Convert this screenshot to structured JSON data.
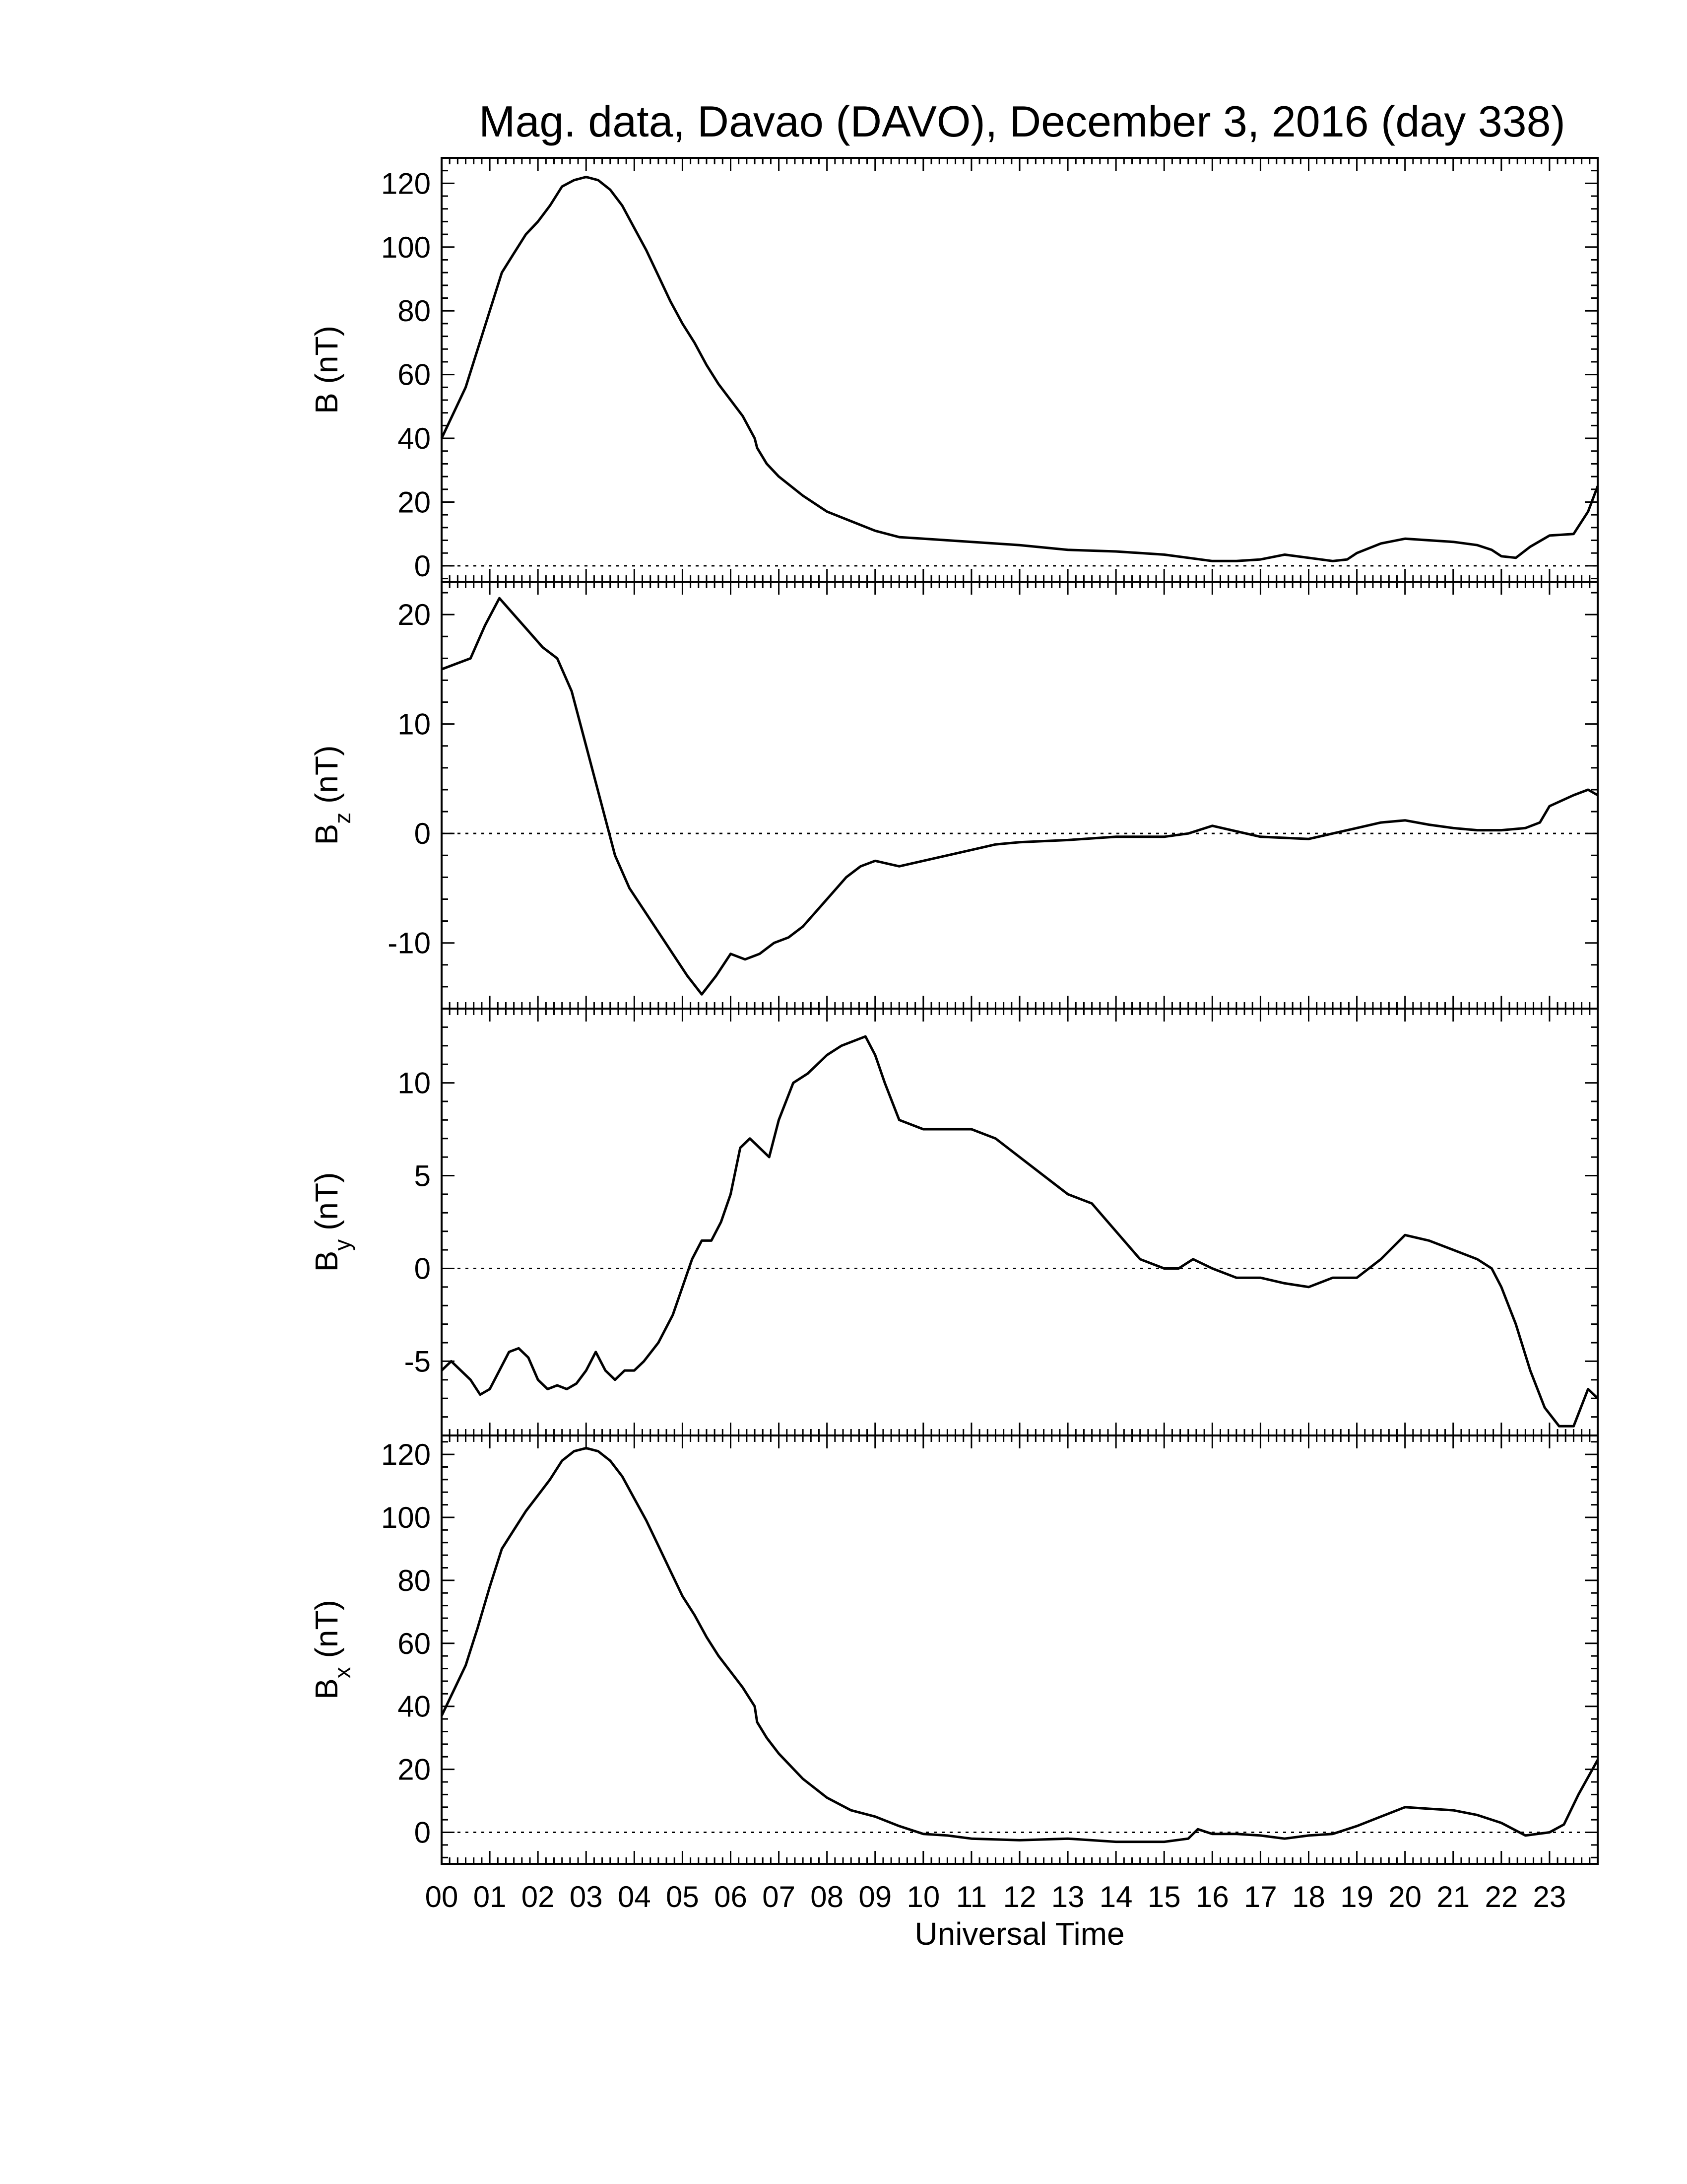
{
  "figure": {
    "title": "Mag. data, Davao (DAVO), December 3, 2016 (day 338)",
    "xlabel": "Universal Time"
  },
  "chart_data": [
    {
      "type": "line",
      "id": "B",
      "ylabel_main": "B",
      "ylabel_sub": "",
      "ylabel_unit": "(nT)",
      "xlim": [
        0,
        24
      ],
      "ylim": [
        -5,
        128
      ],
      "yticks": [
        0,
        20,
        40,
        60,
        80,
        100,
        120
      ],
      "zero_line": true,
      "x": [
        0,
        0.25,
        0.5,
        0.75,
        1.0,
        1.25,
        1.5,
        1.75,
        2.0,
        2.25,
        2.5,
        2.75,
        3.0,
        3.25,
        3.5,
        3.75,
        4.0,
        4.25,
        4.5,
        4.75,
        5.0,
        5.25,
        5.5,
        5.75,
        6.0,
        6.25,
        6.5,
        6.55,
        6.75,
        7.0,
        7.5,
        8.0,
        8.5,
        9.0,
        9.5,
        10.0,
        10.5,
        11.0,
        12.0,
        13.0,
        14.0,
        15.0,
        15.5,
        16.0,
        16.5,
        17.0,
        17.5,
        18.0,
        18.5,
        18.8,
        19.0,
        19.5,
        20.0,
        20.5,
        21.0,
        21.5,
        21.8,
        22.0,
        22.3,
        22.6,
        23.0,
        23.5,
        23.8,
        24.0
      ],
      "values": [
        40,
        48,
        56,
        68,
        80,
        92,
        98,
        104,
        108,
        113,
        119,
        121,
        122,
        121,
        118,
        113,
        106,
        99,
        91,
        83,
        76,
        70,
        63,
        57,
        52,
        47,
        40,
        37,
        32,
        28,
        22,
        17,
        14,
        11,
        9,
        8.5,
        8,
        7.5,
        6.5,
        5,
        4.5,
        3.5,
        2.5,
        1.5,
        1.5,
        2,
        3.5,
        2.5,
        1.5,
        2,
        4,
        7,
        8.5,
        8,
        7.5,
        6.5,
        5,
        3,
        2.5,
        6,
        9.5,
        10,
        17,
        25
      ]
    },
    {
      "type": "line",
      "id": "Bz",
      "ylabel_main": "B",
      "ylabel_sub": "z",
      "ylabel_unit": "(nT)",
      "xlim": [
        0,
        24
      ],
      "ylim": [
        -16,
        23
      ],
      "yticks": [
        -10,
        0,
        10,
        20
      ],
      "zero_line": true,
      "x": [
        0,
        0.3,
        0.6,
        0.9,
        1.2,
        1.5,
        1.8,
        2.1,
        2.4,
        2.7,
        3.0,
        3.3,
        3.6,
        3.9,
        4.2,
        4.5,
        4.8,
        5.1,
        5.4,
        5.7,
        6.0,
        6.3,
        6.6,
        6.9,
        7.2,
        7.5,
        7.8,
        8.1,
        8.4,
        8.7,
        9.0,
        9.5,
        10.0,
        10.5,
        11.0,
        11.5,
        12.0,
        13.0,
        14.0,
        15.0,
        15.5,
        16.0,
        16.5,
        17.0,
        18.0,
        18.5,
        19.0,
        19.5,
        20.0,
        20.5,
        21.0,
        21.5,
        22.0,
        22.5,
        22.8,
        23.0,
        23.5,
        23.8,
        24.0
      ],
      "values": [
        15,
        15.5,
        16,
        19,
        21.5,
        20,
        18.5,
        17,
        16,
        13,
        8,
        3,
        -2,
        -5,
        -7,
        -9,
        -11,
        -13,
        -14.7,
        -13,
        -11,
        -11.5,
        -11,
        -10,
        -9.5,
        -8.5,
        -7,
        -5.5,
        -4,
        -3,
        -2.5,
        -3,
        -2.5,
        -2,
        -1.5,
        -1,
        -0.8,
        -0.6,
        -0.3,
        -0.3,
        0,
        0.7,
        0.2,
        -0.3,
        -0.5,
        0,
        0.5,
        1,
        1.2,
        0.8,
        0.5,
        0.3,
        0.3,
        0.5,
        1,
        2.5,
        3.5,
        4,
        3.5
      ]
    },
    {
      "type": "line",
      "id": "By",
      "ylabel_main": "B",
      "ylabel_sub": "y",
      "ylabel_unit": "(nT)",
      "xlim": [
        0,
        24
      ],
      "ylim": [
        -9,
        14
      ],
      "yticks": [
        -5,
        0,
        5,
        10
      ],
      "zero_line": true,
      "x": [
        0,
        0.2,
        0.4,
        0.6,
        0.8,
        1.0,
        1.2,
        1.4,
        1.6,
        1.8,
        2.0,
        2.2,
        2.4,
        2.6,
        2.8,
        3.0,
        3.2,
        3.4,
        3.6,
        3.8,
        4.0,
        4.2,
        4.5,
        4.8,
        5.0,
        5.2,
        5.4,
        5.6,
        5.8,
        6.0,
        6.2,
        6.4,
        6.6,
        6.8,
        7.0,
        7.3,
        7.6,
        8.0,
        8.3,
        8.6,
        8.8,
        9.0,
        9.2,
        9.5,
        10.0,
        10.5,
        11.0,
        11.5,
        12.0,
        12.5,
        13.0,
        13.5,
        14.0,
        14.5,
        15.0,
        15.3,
        15.6,
        16.0,
        16.5,
        17.0,
        17.5,
        18.0,
        18.5,
        19.0,
        19.5,
        20.0,
        20.5,
        21.0,
        21.5,
        21.8,
        22.0,
        22.3,
        22.6,
        22.9,
        23.2,
        23.5,
        23.8,
        24.0
      ],
      "values": [
        -5.5,
        -5,
        -5.5,
        -6,
        -6.8,
        -6.5,
        -5.5,
        -4.5,
        -4.3,
        -4.8,
        -6,
        -6.5,
        -6.3,
        -6.5,
        -6.2,
        -5.5,
        -4.5,
        -5.5,
        -6,
        -5.5,
        -5.5,
        -5,
        -4,
        -2.5,
        -1,
        0.5,
        1.5,
        1.5,
        2.5,
        4,
        6.5,
        7,
        6.5,
        6,
        8,
        10,
        10.5,
        11.5,
        12,
        12.3,
        12.5,
        11.5,
        10,
        8,
        7.5,
        7.5,
        7.5,
        7,
        6,
        5,
        4,
        3.5,
        2,
        0.5,
        0,
        0,
        0.5,
        0,
        -0.5,
        -0.5,
        -0.8,
        -1,
        -0.5,
        -0.5,
        0.5,
        1.8,
        1.5,
        1,
        0.5,
        0,
        -1,
        -3,
        -5.5,
        -7.5,
        -8.5,
        -8.5,
        -6.5,
        -7
      ]
    },
    {
      "type": "line",
      "id": "Bx",
      "ylabel_main": "B",
      "ylabel_sub": "x",
      "ylabel_unit": "(nT)",
      "xlim": [
        0,
        24
      ],
      "ylim": [
        -10,
        126
      ],
      "yticks": [
        0,
        20,
        40,
        60,
        80,
        100,
        120
      ],
      "zero_line": true,
      "x": [
        0,
        0.25,
        0.5,
        0.75,
        1.0,
        1.25,
        1.5,
        1.75,
        2.0,
        2.25,
        2.5,
        2.75,
        3.0,
        3.25,
        3.5,
        3.75,
        4.0,
        4.25,
        4.5,
        4.75,
        5.0,
        5.25,
        5.5,
        5.75,
        6.0,
        6.25,
        6.5,
        6.55,
        6.75,
        7.0,
        7.5,
        8.0,
        8.5,
        9.0,
        9.5,
        10.0,
        10.5,
        11.0,
        12.0,
        13.0,
        14.0,
        15.0,
        15.5,
        15.7,
        16.0,
        16.5,
        17.0,
        17.5,
        18.0,
        18.5,
        19.0,
        19.5,
        20.0,
        20.5,
        21.0,
        21.5,
        22.0,
        22.5,
        23.0,
        23.3,
        23.6,
        24.0
      ],
      "values": [
        37,
        45,
        53,
        65,
        78,
        90,
        96,
        102,
        107,
        112,
        118,
        121,
        122,
        121,
        118,
        113,
        106,
        99,
        91,
        83,
        75,
        69,
        62,
        56,
        51,
        46,
        40,
        35,
        30,
        25,
        17,
        11,
        7,
        5,
        2,
        -0.5,
        -1,
        -2,
        -2.5,
        -2,
        -3,
        -3,
        -2,
        1,
        -0.5,
        -0.5,
        -1,
        -2,
        -1,
        -0.5,
        2,
        5,
        8,
        7.5,
        7,
        5.5,
        3,
        -1,
        0,
        2.5,
        12,
        23
      ]
    }
  ],
  "x_ticks": [
    "00",
    "01",
    "02",
    "03",
    "04",
    "05",
    "06",
    "07",
    "08",
    "09",
    "10",
    "11",
    "12",
    "13",
    "14",
    "15",
    "16",
    "17",
    "18",
    "19",
    "20",
    "21",
    "22",
    "23"
  ]
}
